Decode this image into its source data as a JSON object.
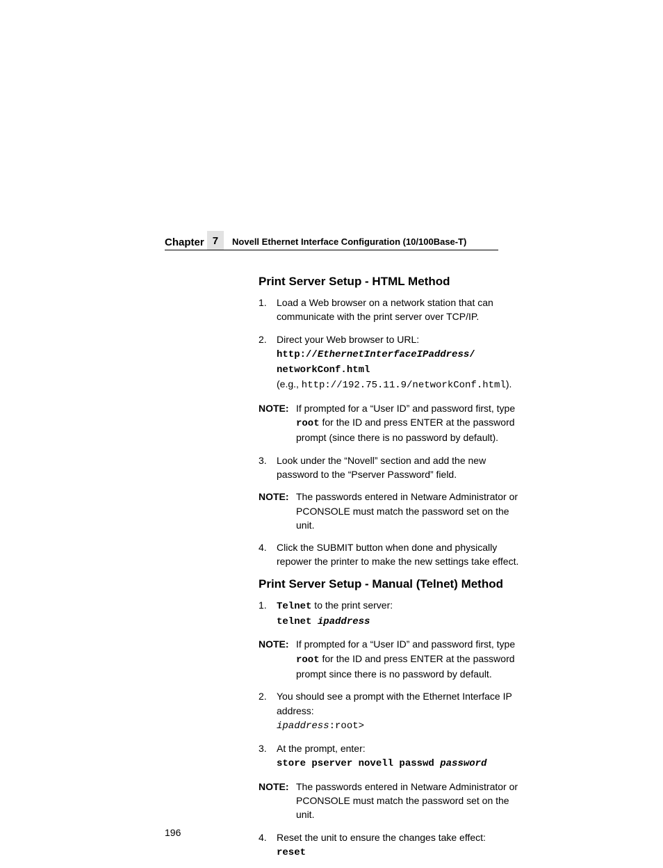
{
  "header": {
    "chapter_label": "Chapter",
    "chapter_num": "7",
    "chapter_title": "Novell Ethernet Interface Configuration (10/100Base-T)"
  },
  "section1": {
    "title": "Print Server Setup - HTML Method",
    "step1": {
      "n": "1.",
      "text": "Load a Web browser on a network station that can communicate with the print server over TCP/IP."
    },
    "step2": {
      "n": "2.",
      "lead": "Direct your Web browser to URL:",
      "url1a": "http://",
      "url1b": "EthernetInterfaceIPaddress",
      "url1c": "/",
      "url2": "networkConf.html",
      "eg_lead": "(e.g., ",
      "eg_url": "http://192.75.11.9/networkConf.html",
      "eg_tail": ")."
    },
    "note1": {
      "label": "NOTE:",
      "a": "If prompted for a “User ID” and password first, type ",
      "root": "root",
      "b": " for the ID and press ENTER at the password prompt (since there is no password by default)."
    },
    "step3": {
      "n": "3.",
      "text": "Look under the “Novell” section and add the new password to the “Pserver Password” field."
    },
    "note2": {
      "label": "NOTE:",
      "text": "The passwords entered in Netware Administrator or PCONSOLE must match the password set on the unit."
    },
    "step4": {
      "n": "4.",
      "text": "Click the SUBMIT button when done and physically repower the printer to make the new settings take effect."
    }
  },
  "section2": {
    "title": "Print Server Setup - Manual (Telnet) Method",
    "step1": {
      "n": "1.",
      "telnet": "Telnet",
      "a": " to the print server:",
      "cmd1": "telnet ",
      "cmd2": "ipaddress"
    },
    "note1": {
      "label": "NOTE:",
      "a": "If prompted for a “User ID” and password first, type ",
      "root": "root",
      "b": " for the ID and press ENTER at the password prompt since there is no password by default."
    },
    "step2": {
      "n": "2.",
      "a": "You should see a prompt with the Ethernet Interface IP address:",
      "p1": "ipaddress",
      "p2": ":root>"
    },
    "step3": {
      "n": "3.",
      "a": "At the prompt, enter:",
      "cmd1": "store pserver novell passwd ",
      "cmd2": "password"
    },
    "note2": {
      "label": "NOTE:",
      "text": "The passwords entered in Netware Administrator or PCONSOLE must match the password set on the unit."
    },
    "step4": {
      "n": "4.",
      "a": "Reset the unit to ensure the changes take effect:",
      "cmd": "reset"
    }
  },
  "page_number": "196"
}
